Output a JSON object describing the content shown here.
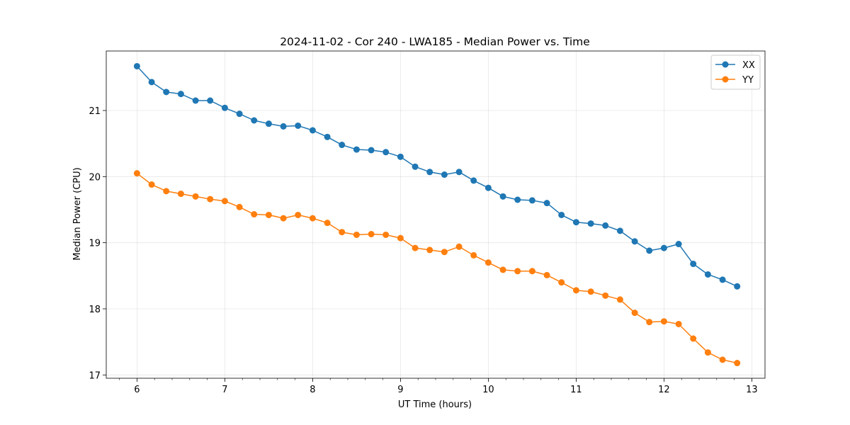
{
  "chart_data": {
    "type": "line",
    "title": "2024-11-02 - Cor 240 - LWA185 - Median Power vs. Time",
    "xlabel": "UT Time (hours)",
    "ylabel": "Median Power (CPU)",
    "xlim": [
      5.65,
      13.15
    ],
    "ylim": [
      16.95,
      21.9
    ],
    "xticks": [
      6,
      7,
      8,
      9,
      10,
      11,
      12,
      13
    ],
    "xtick_labels": [
      "6",
      "7",
      "8",
      "9",
      "10",
      "11",
      "12",
      "13"
    ],
    "yticks": [
      17,
      18,
      19,
      20,
      21
    ],
    "ytick_labels": [
      "17",
      "18",
      "19",
      "20",
      "21"
    ],
    "grid": true,
    "legend_position": "top-right",
    "x": [
      6.0,
      6.167,
      6.333,
      6.5,
      6.667,
      6.833,
      7.0,
      7.167,
      7.333,
      7.5,
      7.667,
      7.833,
      8.0,
      8.167,
      8.333,
      8.5,
      8.667,
      8.833,
      9.0,
      9.167,
      9.333,
      9.5,
      9.667,
      9.833,
      10.0,
      10.167,
      10.333,
      10.5,
      10.667,
      10.833,
      11.0,
      11.167,
      11.333,
      11.5,
      11.667,
      11.833,
      12.0,
      12.167,
      12.333,
      12.5,
      12.667,
      12.833
    ],
    "series": [
      {
        "name": "XX",
        "color": "#1f77b4",
        "values": [
          21.67,
          21.43,
          21.28,
          21.25,
          21.15,
          21.15,
          21.04,
          20.95,
          20.85,
          20.8,
          20.76,
          20.77,
          20.7,
          20.6,
          20.48,
          20.41,
          20.4,
          20.37,
          20.3,
          20.15,
          20.07,
          20.03,
          20.07,
          19.94,
          19.83,
          19.7,
          19.65,
          19.64,
          19.6,
          19.42,
          19.31,
          19.29,
          19.26,
          19.18,
          19.02,
          18.88,
          18.92,
          18.98,
          18.68,
          18.52,
          18.44,
          18.34
        ]
      },
      {
        "name": "YY",
        "color": "#ff7f0e",
        "values": [
          20.05,
          19.88,
          19.78,
          19.74,
          19.7,
          19.66,
          19.63,
          19.54,
          19.43,
          19.42,
          19.37,
          19.42,
          19.37,
          19.3,
          19.16,
          19.12,
          19.13,
          19.12,
          19.07,
          18.92,
          18.89,
          18.86,
          18.94,
          18.81,
          18.7,
          18.59,
          18.57,
          18.57,
          18.51,
          18.4,
          18.28,
          18.26,
          18.2,
          18.14,
          17.94,
          17.8,
          17.81,
          17.77,
          17.55,
          17.34,
          17.23,
          17.18
        ]
      }
    ]
  }
}
